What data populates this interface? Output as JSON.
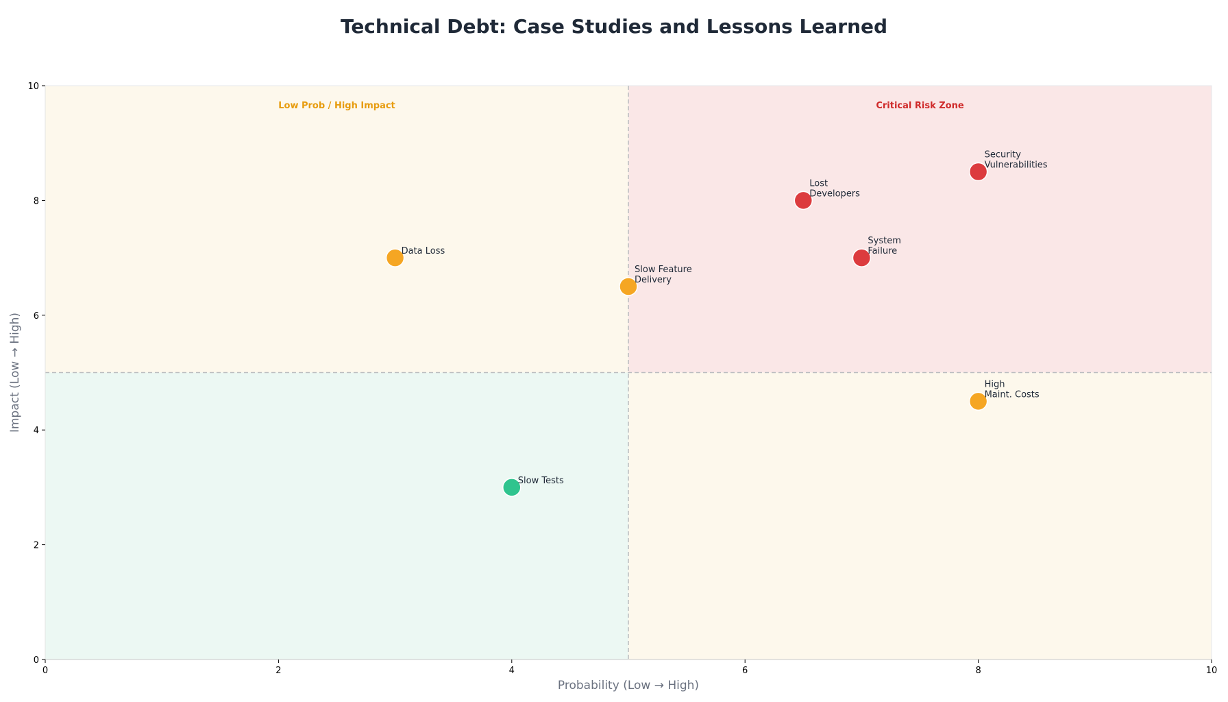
{
  "chart_data": {
    "type": "scatter",
    "title": "Technical Debt: Case Studies and Lessons Learned",
    "xlabel": "Probability (Low → High)",
    "ylabel": "Impact (Low → High)",
    "xlim": [
      0,
      10
    ],
    "ylim": [
      0,
      10
    ],
    "xticks": [
      0,
      2,
      4,
      6,
      8,
      10
    ],
    "yticks": [
      0,
      2,
      4,
      6,
      8,
      10
    ],
    "grid": false,
    "threshold_x": 5,
    "threshold_y": 5,
    "quadrants": [
      {
        "name": "top-left",
        "x_range": [
          0,
          5
        ],
        "y_range": [
          5,
          10
        ],
        "color": "#fdf8ec",
        "label": "Low Prob / High Impact",
        "label_color": "#e79c0e"
      },
      {
        "name": "top-right",
        "x_range": [
          5,
          10
        ],
        "y_range": [
          5,
          10
        ],
        "color": "#fae7e7",
        "label": "Critical Risk Zone",
        "label_color": "#cf2a2a"
      },
      {
        "name": "bottom-left",
        "x_range": [
          0,
          5
        ],
        "y_range": [
          0,
          5
        ],
        "color": "#ecf8f3",
        "label": "",
        "label_color": ""
      },
      {
        "name": "bottom-right",
        "x_range": [
          5,
          10
        ],
        "y_range": [
          0,
          5
        ],
        "color": "#fdf8ec",
        "label": "",
        "label_color": ""
      }
    ],
    "points": [
      {
        "label": [
          "Security",
          "Vulnerabilities"
        ],
        "x": 8,
        "y": 8.5,
        "color": "#dc3b3e"
      },
      {
        "label": [
          "Lost",
          "Developers"
        ],
        "x": 6.5,
        "y": 8,
        "color": "#dc3b3e"
      },
      {
        "label": [
          "System",
          "Failure"
        ],
        "x": 7,
        "y": 7,
        "color": "#dc3b3e"
      },
      {
        "label": [
          "Data Loss"
        ],
        "x": 3,
        "y": 7,
        "color": "#f5a623"
      },
      {
        "label": [
          "Slow Feature",
          "Delivery"
        ],
        "x": 5,
        "y": 6.5,
        "color": "#f5a623"
      },
      {
        "label": [
          "High",
          "Maint. Costs"
        ],
        "x": 8,
        "y": 4.5,
        "color": "#f5a623"
      },
      {
        "label": [
          "Slow Tests"
        ],
        "x": 4,
        "y": 3,
        "color": "#2fc48e"
      }
    ]
  }
}
